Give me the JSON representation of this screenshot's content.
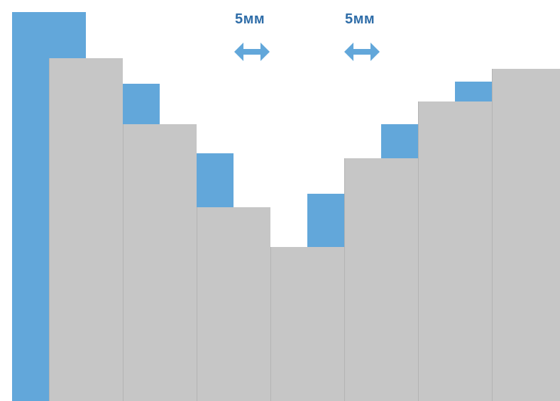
{
  "colors": {
    "background": "#ffffff",
    "gray": "#c6c6c6",
    "gray_edge": "#b3b3b3",
    "blue": "#62a7da",
    "label": "#2f6da8",
    "arrow": "#62a7da"
  },
  "annotations": [
    {
      "text": "5мм",
      "icon": "double-arrow-icon"
    },
    {
      "text": "5мм",
      "icon": "double-arrow-icon"
    }
  ]
}
